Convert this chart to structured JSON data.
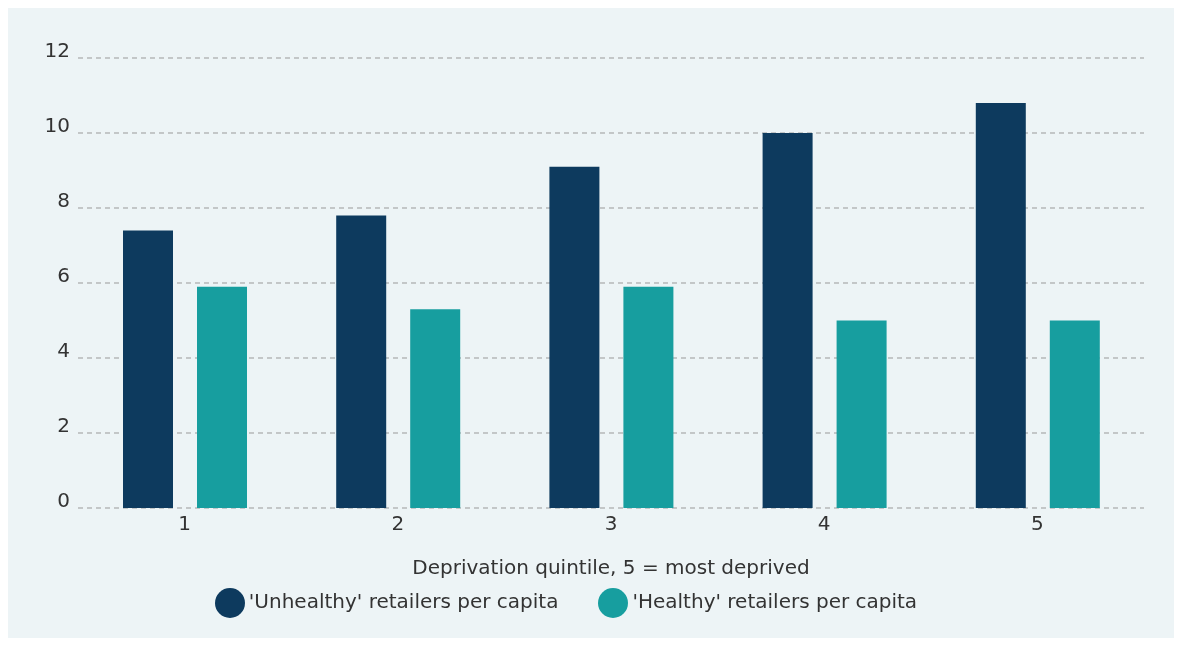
{
  "chart_data": {
    "type": "bar",
    "xlabel": "Deprivation quintile, 5 = most deprived",
    "categories": [
      "1",
      "2",
      "3",
      "4",
      "5"
    ],
    "series": [
      {
        "name": "'Unhealthy' retailers per capita",
        "color": "#0d3a5e",
        "values": [
          7.4,
          7.8,
          9.1,
          10.0,
          10.8
        ]
      },
      {
        "name": "'Healthy' retailers per capita",
        "color": "#179e9f",
        "values": [
          5.9,
          5.3,
          5.9,
          5.0,
          5.0
        ]
      }
    ],
    "ylim": [
      0,
      12
    ],
    "yticks": [
      0,
      2,
      4,
      6,
      8,
      10,
      12
    ],
    "grid": "y",
    "legend": "bottom"
  }
}
